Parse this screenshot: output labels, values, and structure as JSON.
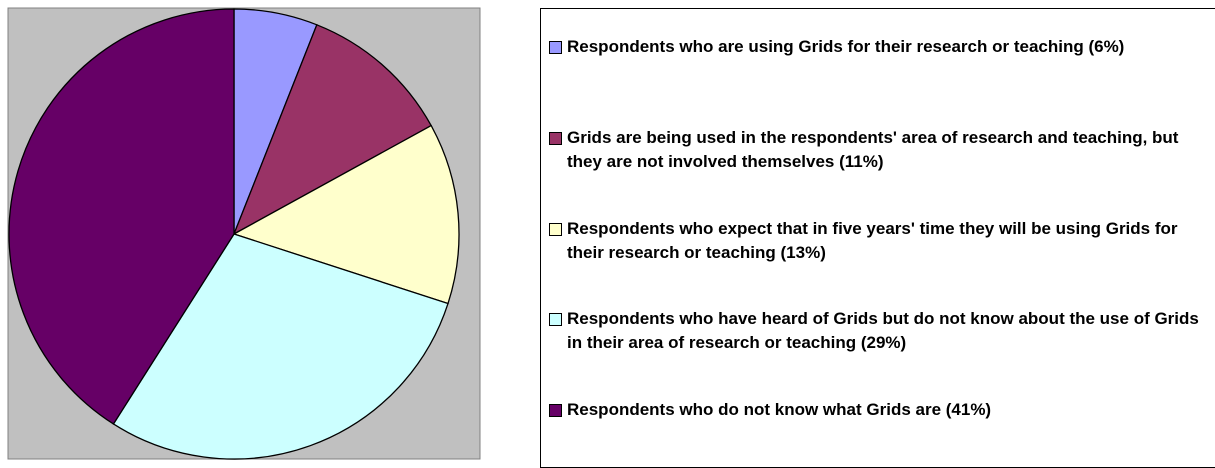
{
  "chart_data": {
    "type": "pie",
    "categories": [
      "Respondents who are using Grids for their research or teaching (6%)",
      "Grids are being used in the respondents' area of research and teaching, but they are not involved themselves (11%)",
      "Respondents who expect that in five years' time they will be using Grids for their research or teaching (13%)",
      "Respondents who have heard of Grids but do not know about the use of Grids in their area of research or teaching (29%)",
      "Respondents who do not know what Grids are (41%)"
    ],
    "values": [
      6,
      11,
      13,
      29,
      41
    ],
    "colors": [
      "#9999ff",
      "#993366",
      "#ffffcc",
      "#ccffff",
      "#660066"
    ]
  }
}
